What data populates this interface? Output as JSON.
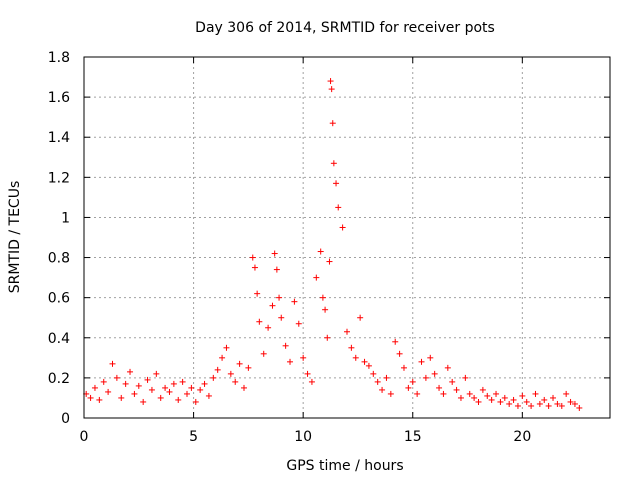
{
  "chart_data": {
    "type": "scatter",
    "title": "Day 306 of 2014, SRMTID for receiver pots",
    "xlabel": "GPS time / hours",
    "ylabel": "SRMTID / TECUs",
    "xlim": [
      0,
      24
    ],
    "ylim": [
      0,
      1.8
    ],
    "x_ticks": [
      0,
      5,
      10,
      15,
      20
    ],
    "x_tick_labels": [
      "0",
      "5",
      "10",
      "15",
      "20"
    ],
    "y_ticks": [
      0,
      0.2,
      0.4,
      0.6,
      0.8,
      1.0,
      1.2,
      1.4,
      1.6,
      1.8
    ],
    "y_tick_labels": [
      "0",
      "0.2",
      "0.4",
      "0.6",
      "0.8",
      "1",
      "1.2",
      "1.4",
      "1.6",
      "1.8"
    ],
    "grid": true,
    "marker": "+",
    "color": "#ff0000",
    "x_range_of_data": [
      0,
      22.7
    ],
    "series": [
      {
        "name": "SRMTID",
        "x": [
          0.1,
          0.3,
          0.5,
          0.7,
          0.9,
          1.1,
          1.3,
          1.5,
          1.7,
          1.9,
          2.1,
          2.3,
          2.5,
          2.7,
          2.9,
          3.1,
          3.3,
          3.5,
          3.7,
          3.9,
          4.1,
          4.3,
          4.5,
          4.7,
          4.9,
          5.1,
          5.3,
          5.5,
          5.7,
          5.9,
          6.1,
          6.3,
          6.5,
          6.7,
          6.9,
          7.1,
          7.3,
          7.5,
          7.7,
          7.8,
          7.9,
          8.0,
          8.2,
          8.4,
          8.6,
          8.7,
          8.8,
          8.9,
          9.0,
          9.2,
          9.4,
          9.6,
          9.8,
          10.0,
          10.2,
          10.4,
          10.6,
          10.8,
          10.9,
          11.0,
          11.1,
          11.2,
          11.25,
          11.3,
          11.35,
          11.4,
          11.5,
          11.6,
          11.8,
          12.0,
          12.2,
          12.4,
          12.6,
          12.8,
          13.0,
          13.2,
          13.4,
          13.6,
          13.8,
          14.0,
          14.2,
          14.4,
          14.6,
          14.8,
          15.0,
          15.2,
          15.4,
          15.6,
          15.8,
          16.0,
          16.2,
          16.4,
          16.6,
          16.8,
          17.0,
          17.2,
          17.4,
          17.6,
          17.8,
          18.0,
          18.2,
          18.4,
          18.6,
          18.8,
          19.0,
          19.2,
          19.4,
          19.6,
          19.8,
          20.0,
          20.2,
          20.4,
          20.6,
          20.8,
          21.0,
          21.2,
          21.4,
          21.6,
          21.8,
          22.0,
          22.2,
          22.4,
          22.6
        ],
        "y": [
          0.12,
          0.1,
          0.15,
          0.09,
          0.18,
          0.13,
          0.27,
          0.2,
          0.1,
          0.17,
          0.23,
          0.12,
          0.16,
          0.08,
          0.19,
          0.14,
          0.22,
          0.1,
          0.15,
          0.13,
          0.17,
          0.09,
          0.18,
          0.12,
          0.15,
          0.08,
          0.14,
          0.17,
          0.11,
          0.2,
          0.24,
          0.3,
          0.35,
          0.22,
          0.18,
          0.27,
          0.15,
          0.25,
          0.8,
          0.75,
          0.62,
          0.48,
          0.32,
          0.45,
          0.56,
          0.82,
          0.74,
          0.6,
          0.5,
          0.36,
          0.28,
          0.58,
          0.47,
          0.3,
          0.22,
          0.18,
          0.7,
          0.83,
          0.6,
          0.54,
          0.4,
          0.78,
          1.68,
          1.64,
          1.47,
          1.27,
          1.17,
          1.05,
          0.95,
          0.43,
          0.35,
          0.3,
          0.5,
          0.28,
          0.26,
          0.22,
          0.18,
          0.14,
          0.2,
          0.12,
          0.38,
          0.32,
          0.25,
          0.15,
          0.18,
          0.12,
          0.28,
          0.2,
          0.3,
          0.22,
          0.15,
          0.12,
          0.25,
          0.18,
          0.14,
          0.1,
          0.2,
          0.12,
          0.1,
          0.08,
          0.14,
          0.11,
          0.09,
          0.12,
          0.08,
          0.1,
          0.07,
          0.09,
          0.06,
          0.11,
          0.08,
          0.06,
          0.12,
          0.07,
          0.09,
          0.06,
          0.1,
          0.07,
          0.06,
          0.12,
          0.08,
          0.07,
          0.05
        ]
      }
    ]
  }
}
